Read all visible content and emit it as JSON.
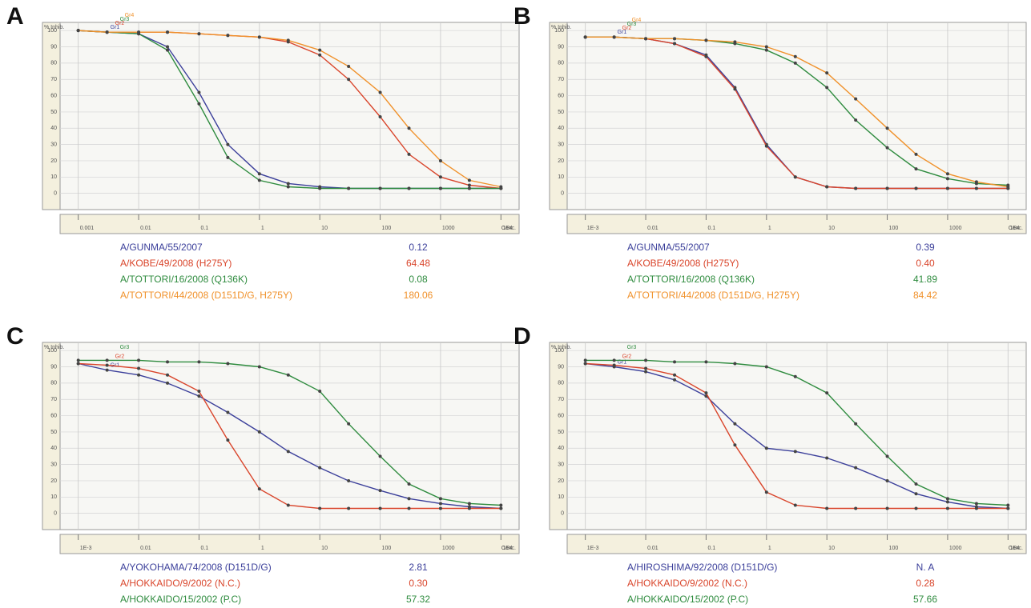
{
  "chart_data": [
    {
      "type": "line",
      "panel": "A",
      "y_label": "% Inhib.",
      "x_label": "Conc.",
      "log_x": true,
      "grid": true,
      "xlim": [
        0.0005,
        20000
      ],
      "xticks": [
        0.001,
        0.01,
        0.1,
        1,
        10,
        100,
        1000,
        {
          "value": 10000,
          "label": "1E4"
        }
      ],
      "ylim": [
        -10,
        105
      ],
      "yticks": [
        0,
        10,
        20,
        30,
        40,
        50,
        60,
        70,
        80,
        90,
        100
      ],
      "x": [
        0.001,
        0.003,
        0.01,
        0.03,
        0.1,
        0.3,
        1,
        3,
        10,
        30,
        100,
        300,
        1000,
        3000,
        10000
      ],
      "series": [
        {
          "name": "A/GUNMA/55/2007",
          "tag": "Gr1",
          "color": "#3b3f9a",
          "ic50": 0.12,
          "values": [
            100,
            99,
            98,
            90,
            62,
            30,
            12,
            6,
            4,
            3,
            3,
            3,
            3,
            3,
            3
          ]
        },
        {
          "name": "A/KOBE/49/2008 (H275Y)",
          "tag": "Gr2",
          "color": "#d9452b",
          "ic50": 64.48,
          "values": [
            100,
            99,
            99,
            99,
            98,
            97,
            96,
            93,
            85,
            70,
            47,
            24,
            10,
            5,
            3
          ]
        },
        {
          "name": "A/TOTTORI/16/2008 (Q136K)",
          "tag": "Gr3",
          "color": "#2e8b3e",
          "ic50": {
            "value": 0.08,
            "label": "0.08"
          },
          "values": [
            100,
            99,
            98,
            88,
            55,
            22,
            8,
            4,
            3,
            3,
            3,
            3,
            3,
            3,
            3
          ]
        },
        {
          "name": "A/TOTTORI/44/2008 (D151D/G, H275Y)",
          "tag": "Gr4",
          "color": "#f0912a",
          "ic50": 180.06,
          "values": [
            100,
            99,
            99,
            99,
            98,
            97,
            96,
            94,
            88,
            78,
            62,
            40,
            20,
            8,
            4
          ]
        }
      ]
    },
    {
      "type": "line",
      "panel": "B",
      "y_label": "% Inhib.",
      "x_label": "Conc.",
      "log_x": true,
      "grid": true,
      "xlim": [
        0.0005,
        20000
      ],
      "xticks": [
        {
          "value": 0.001,
          "label": "1E-3"
        },
        0.01,
        0.1,
        1,
        10,
        100,
        1000,
        {
          "value": 10000,
          "label": "1E4"
        }
      ],
      "ylim": [
        -10,
        105
      ],
      "yticks": [
        0,
        10,
        20,
        30,
        40,
        50,
        60,
        70,
        80,
        90,
        100
      ],
      "x": [
        0.001,
        0.003,
        0.01,
        0.03,
        0.1,
        0.3,
        1,
        3,
        10,
        30,
        100,
        300,
        1000,
        3000,
        10000
      ],
      "series": [
        {
          "name": "A/GUNMA/55/2007",
          "tag": "Gr1",
          "color": "#3b3f9a",
          "ic50": 0.39,
          "values": [
            96,
            96,
            95,
            92,
            85,
            65,
            30,
            10,
            4,
            3,
            3,
            3,
            3,
            3,
            3
          ]
        },
        {
          "name": "A/KOBE/49/2008 (H275Y)",
          "tag": "Gr2",
          "color": "#d9452b",
          "ic50": {
            "value": 0.4,
            "label": "0.40"
          },
          "values": [
            96,
            96,
            95,
            92,
            84,
            64,
            29,
            10,
            4,
            3,
            3,
            3,
            3,
            3,
            3
          ]
        },
        {
          "name": "A/TOTTORI/16/2008 (Q136K)",
          "tag": "Gr3",
          "color": "#2e8b3e",
          "ic50": 41.89,
          "values": [
            96,
            96,
            95,
            95,
            94,
            92,
            88,
            80,
            65,
            45,
            28,
            15,
            9,
            6,
            5
          ]
        },
        {
          "name": "A/TOTTORI/44/2008 (D151D/G, H275Y)",
          "tag": "Gr4",
          "color": "#f0912a",
          "ic50": 84.42,
          "values": [
            96,
            96,
            95,
            95,
            94,
            93,
            90,
            84,
            74,
            58,
            40,
            24,
            12,
            7,
            4
          ]
        }
      ]
    },
    {
      "type": "line",
      "panel": "C",
      "y_label": "% Inhib.",
      "x_label": "Conc.",
      "log_x": true,
      "grid": true,
      "xlim": [
        0.0005,
        20000
      ],
      "xticks": [
        {
          "value": 0.001,
          "label": "1E-3"
        },
        0.01,
        0.1,
        1,
        10,
        100,
        1000,
        {
          "value": 10000,
          "label": "1E4"
        }
      ],
      "ylim": [
        -10,
        105
      ],
      "yticks": [
        0,
        10,
        20,
        30,
        40,
        50,
        60,
        70,
        80,
        90,
        100
      ],
      "x": [
        0.001,
        0.003,
        0.01,
        0.03,
        0.1,
        0.3,
        1,
        3,
        10,
        30,
        100,
        300,
        1000,
        3000,
        10000
      ],
      "series": [
        {
          "name": "A/YOKOHAMA/74/2008 (D151D/G)",
          "tag": "Gr1",
          "color": "#3b3f9a",
          "ic50": 2.81,
          "values": [
            92,
            88,
            85,
            80,
            72,
            62,
            50,
            38,
            28,
            20,
            14,
            9,
            6,
            4,
            3
          ]
        },
        {
          "name": "A/HOKKAIDO/9/2002 (N.C.)",
          "tag": "Gr2",
          "color": "#d9452b",
          "ic50": {
            "value": 0.3,
            "label": "0.30"
          },
          "values": [
            92,
            91,
            89,
            85,
            75,
            45,
            15,
            5,
            3,
            3,
            3,
            3,
            3,
            3,
            3
          ]
        },
        {
          "name": "A/HOKKAIDO/15/2002 (P.C)",
          "tag": "Gr3",
          "color": "#2e8b3e",
          "ic50": 57.32,
          "values": [
            94,
            94,
            94,
            93,
            93,
            92,
            90,
            85,
            75,
            55,
            35,
            18,
            9,
            6,
            5
          ]
        }
      ]
    },
    {
      "type": "line",
      "panel": "D",
      "y_label": "% Inhib.",
      "x_label": "Conc.",
      "log_x": true,
      "grid": true,
      "xlim": [
        0.0005,
        20000
      ],
      "xticks": [
        {
          "value": 0.001,
          "label": "1E-3"
        },
        0.01,
        0.1,
        1,
        10,
        100,
        1000,
        {
          "value": 10000,
          "label": "1E4"
        }
      ],
      "ylim": [
        -10,
        105
      ],
      "yticks": [
        0,
        10,
        20,
        30,
        40,
        50,
        60,
        70,
        80,
        90,
        100
      ],
      "x": [
        0.001,
        0.003,
        0.01,
        0.03,
        0.1,
        0.3,
        1,
        3,
        10,
        30,
        100,
        300,
        1000,
        3000,
        10000
      ],
      "series": [
        {
          "name": "A/HIROSHIMA/92/2008 (D151D/G)",
          "tag": "Gr1",
          "color": "#3b3f9a",
          "ic50": "N. A",
          "values": [
            92,
            90,
            87,
            82,
            72,
            55,
            40,
            38,
            34,
            28,
            20,
            12,
            7,
            4,
            3
          ]
        },
        {
          "name": "A/HOKKAIDO/9/2002 (N.C.)",
          "tag": "Gr2",
          "color": "#d9452b",
          "ic50": 0.28,
          "values": [
            92,
            91,
            89,
            85,
            74,
            42,
            13,
            5,
            3,
            3,
            3,
            3,
            3,
            3,
            3
          ]
        },
        {
          "name": "A/HOKKAIDO/15/2002 (P.C)",
          "tag": "Gr3",
          "color": "#2e8b3e",
          "ic50": 57.66,
          "values": [
            94,
            94,
            94,
            93,
            93,
            92,
            90,
            84,
            74,
            55,
            35,
            18,
            9,
            6,
            5
          ]
        }
      ]
    }
  ]
}
